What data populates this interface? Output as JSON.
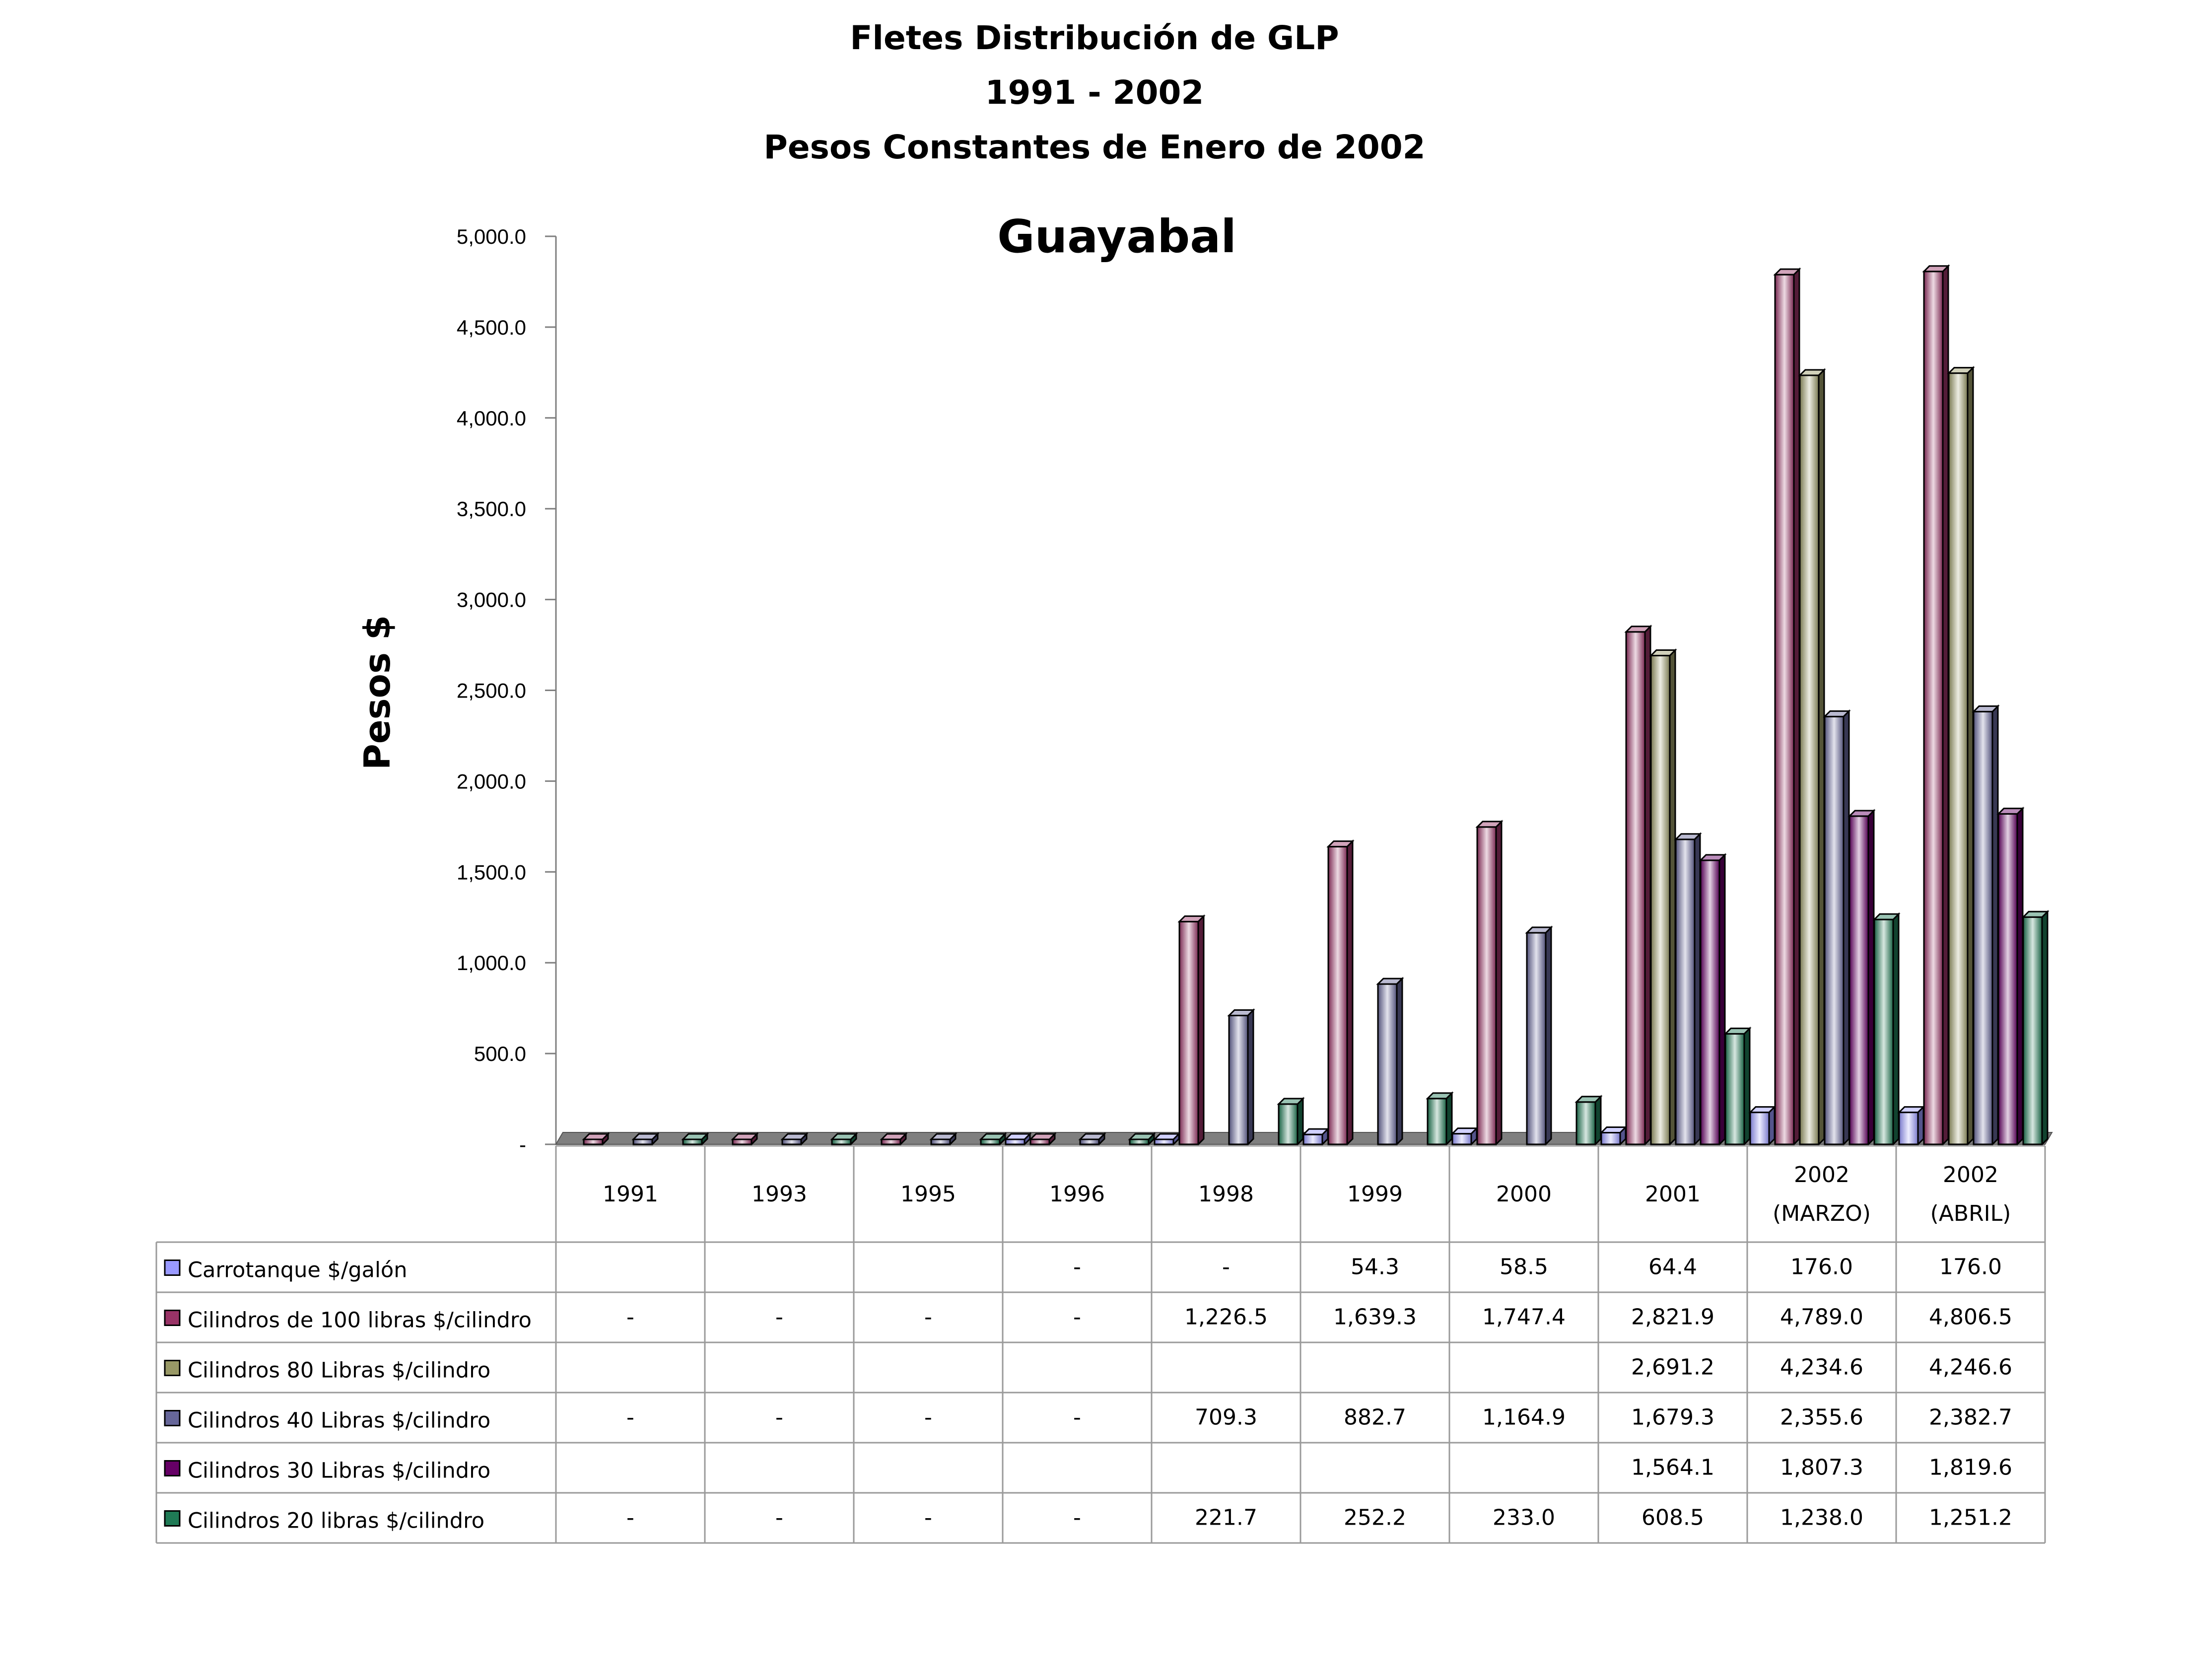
{
  "chart_data": {
    "type": "bar",
    "title": [
      "Fletes  Distribución de GLP",
      "1991 - 2002",
      "Pesos Constantes de Enero de 2002"
    ],
    "subtitle": "Guayabal",
    "xlabel": "",
    "ylabel": "Pesos $",
    "ylim": [
      0,
      5000
    ],
    "yticks": [
      "-",
      "500.0",
      "1,000.0",
      "1,500.0",
      "2,000.0",
      "2,500.0",
      "3,000.0",
      "3,500.0",
      "4,000.0",
      "4,500.0",
      "5,000.0"
    ],
    "ytick_values": [
      0,
      500,
      1000,
      1500,
      2000,
      2500,
      3000,
      3500,
      4000,
      4500,
      5000
    ],
    "grid": false,
    "legend": "bottom-table",
    "categories": [
      [
        "1991"
      ],
      [
        "1993"
      ],
      [
        "1995"
      ],
      [
        "1996"
      ],
      [
        "1998"
      ],
      [
        "1999"
      ],
      [
        "2000"
      ],
      [
        "2001"
      ],
      [
        "2002",
        "(MARZO)"
      ],
      [
        "2002",
        "(ABRIL)"
      ]
    ],
    "series": [
      {
        "name": "Carrotanque $/galón",
        "color": "#9999ff",
        "values": [
          null,
          null,
          null,
          0,
          0,
          54.3,
          58.5,
          64.4,
          176.0,
          176.0
        ],
        "labels": [
          "",
          "",
          "",
          "-",
          "-",
          "54.3",
          "58.5",
          "64.4",
          "176.0",
          "176.0"
        ]
      },
      {
        "name": "Cilindros de 100 libras $/cilindro",
        "color": "#993366",
        "values": [
          0,
          0,
          0,
          0,
          1226.5,
          1639.3,
          1747.4,
          2821.9,
          4789.0,
          4806.5
        ],
        "labels": [
          "-",
          "-",
          "-",
          "-",
          "1,226.5",
          "1,639.3",
          "1,747.4",
          "2,821.9",
          "4,789.0",
          "4,806.5"
        ]
      },
      {
        "name": "Cilindros 80 Libras $/cilindro",
        "color": "#999966",
        "values": [
          null,
          null,
          null,
          null,
          null,
          null,
          null,
          2691.2,
          4234.6,
          4246.6
        ],
        "labels": [
          "",
          "",
          "",
          "",
          "",
          "",
          "",
          "2,691.2",
          "4,234.6",
          "4,246.6"
        ]
      },
      {
        "name": "Cilindros 40 Libras $/cilindro",
        "color": "#666699",
        "values": [
          0,
          0,
          0,
          0,
          709.3,
          882.7,
          1164.9,
          1679.3,
          2355.6,
          2382.7
        ],
        "labels": [
          "-",
          "-",
          "-",
          "-",
          "709.3",
          "882.7",
          "1,164.9",
          "1,679.3",
          "2,355.6",
          "2,382.7"
        ]
      },
      {
        "name": "Cilindros 30 Libras $/cilindro",
        "color": "#660066",
        "values": [
          null,
          null,
          null,
          null,
          null,
          null,
          null,
          1564.1,
          1807.3,
          1819.6
        ],
        "labels": [
          "",
          "",
          "",
          "",
          "",
          "",
          "",
          "1,564.1",
          "1,807.3",
          "1,819.6"
        ]
      },
      {
        "name": "Cilindros 20 libras $/cilindro",
        "color": "#1f7a55",
        "values": [
          0,
          0,
          0,
          0,
          221.7,
          252.2,
          233.0,
          608.5,
          1238.0,
          1251.2
        ],
        "labels": [
          "-",
          "-",
          "-",
          "-",
          "221.7",
          "252.2",
          "233.0",
          "608.5",
          "1,238.0",
          "1,251.2"
        ]
      }
    ]
  },
  "colors": {
    "floor": "#7f7f7f",
    "axis": "#7f7f7f",
    "table_border": "#9a9a9a"
  }
}
